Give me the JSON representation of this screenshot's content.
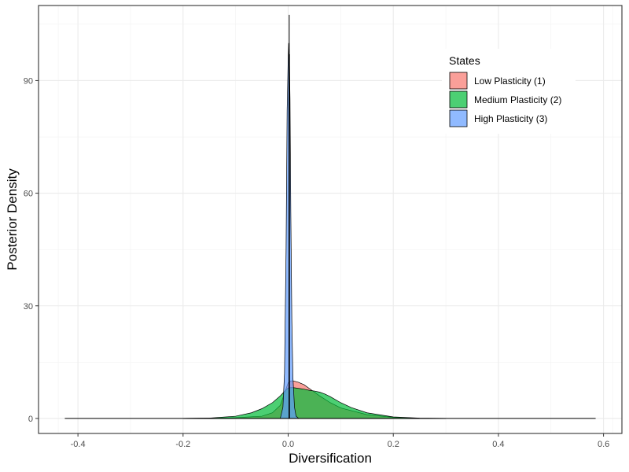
{
  "chart_data": {
    "type": "area",
    "xlabel": "Diversification",
    "ylabel": "Posterior Density",
    "xlim": [
      -0.475,
      0.635
    ],
    "ylim": [
      -4,
      110
    ],
    "xticks": [
      -0.4,
      -0.2,
      0.0,
      0.2,
      0.4,
      0.6
    ],
    "xtick_labels": [
      "-0.4",
      "-0.2",
      "0.0",
      "0.2",
      "0.4",
      "0.6"
    ],
    "yticks": [
      0,
      30,
      60,
      90
    ],
    "ytick_labels": [
      "0",
      "30",
      "60",
      "90"
    ],
    "grid": true,
    "legend": {
      "title": "States",
      "position": "top-right",
      "entries": [
        {
          "label": "Low Plasticity (1)",
          "color": "#F8766D"
        },
        {
          "label": "Medium Plasticity (2)",
          "color": "#00BA38"
        },
        {
          "label": "High Plasticity (3)",
          "color": "#619CFF"
        }
      ]
    },
    "series": [
      {
        "color": "#F8766D",
        "opacity": 0.7,
        "x": [
          -0.2,
          -0.1,
          -0.05,
          -0.03,
          -0.015,
          -0.005,
          0.0,
          0.005,
          0.01,
          0.02,
          0.03,
          0.045,
          0.06,
          0.08,
          0.1,
          0.15,
          0.2,
          0.25,
          0.3
        ],
        "y": [
          0,
          0.2,
          0.6,
          1.5,
          3.5,
          7.5,
          9.5,
          10.0,
          10.0,
          9.6,
          9.0,
          7.5,
          6.0,
          4.2,
          2.8,
          1.0,
          0.3,
          0.05,
          0
        ]
      },
      {
        "color": "#00BA38",
        "opacity": 0.7,
        "x": [
          -0.2,
          -0.15,
          -0.1,
          -0.07,
          -0.05,
          -0.03,
          -0.015,
          -0.005,
          0.0,
          0.005,
          0.01,
          0.02,
          0.03,
          0.04,
          0.05,
          0.06,
          0.07,
          0.08,
          0.1,
          0.12,
          0.15,
          0.2,
          0.25,
          0.3
        ],
        "y": [
          0,
          0.1,
          0.6,
          1.5,
          2.6,
          4.2,
          6.0,
          7.5,
          8.1,
          8.2,
          8.2,
          8.0,
          7.8,
          7.5,
          7.3,
          7.0,
          6.5,
          5.8,
          4.2,
          2.9,
          1.5,
          0.4,
          0.08,
          0
        ]
      },
      {
        "color": "#619CFF",
        "opacity": 0.7,
        "x": [
          -0.015,
          -0.01,
          -0.007,
          -0.004,
          -0.002,
          0.0,
          0.001,
          0.002,
          0.0035,
          0.005,
          0.007,
          0.009,
          0.012,
          0.015,
          0.02
        ],
        "y": [
          0,
          3,
          12,
          45,
          82,
          96,
          100,
          98,
          85,
          55,
          26,
          11,
          3,
          0.6,
          0
        ]
      }
    ],
    "spikes": [
      {
        "x": 0.002,
        "y_top": 107.5
      },
      {
        "x": 0.0015,
        "y_top": 99.5
      },
      {
        "x": 0.0025,
        "y_top": 97
      }
    ],
    "baseline": {
      "x_range": [
        -0.425,
        0.585
      ],
      "y": 0
    }
  }
}
